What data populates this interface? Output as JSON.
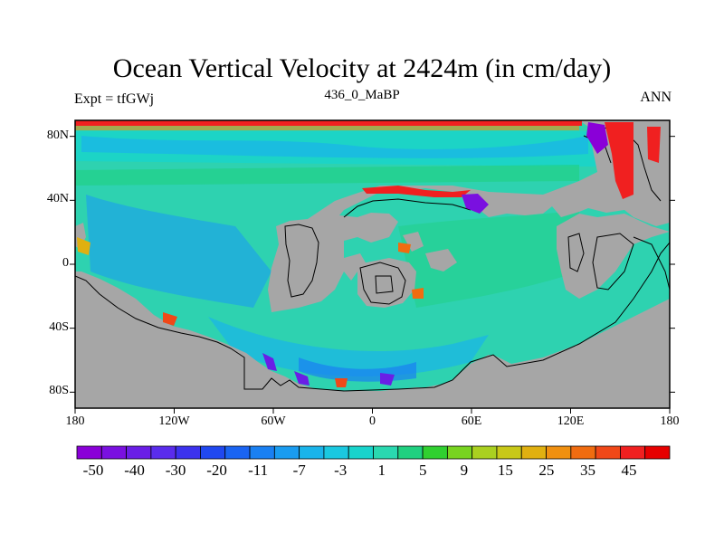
{
  "title": "Ocean Vertical Velocity at 2424m (in cm/day)",
  "subtitle_left": "Expt = tfGWj",
  "subtitle_center": "436_0_MaBP",
  "subtitle_right": "ANN",
  "map": {
    "lon_range": [
      -180,
      180
    ],
    "lat_range": [
      -90,
      90
    ],
    "land_color": "#a6a6a6",
    "ocean_base_color": "#2ed2b0",
    "y_ticks": [
      {
        "lat": 80,
        "label": "80N"
      },
      {
        "lat": 40,
        "label": "40N"
      },
      {
        "lat": 0,
        "label": "0"
      },
      {
        "lat": -40,
        "label": "40S"
      },
      {
        "lat": -80,
        "label": "80S"
      }
    ],
    "x_ticks": [
      {
        "lon": -180,
        "label": "180"
      },
      {
        "lon": -120,
        "label": "120W"
      },
      {
        "lon": -60,
        "label": "60W"
      },
      {
        "lon": 0,
        "label": "0"
      },
      {
        "lon": 60,
        "label": "60E"
      },
      {
        "lon": 120,
        "label": "120E"
      },
      {
        "lon": 180,
        "label": "180"
      }
    ]
  },
  "colorbar": {
    "colors": [
      "#8a00d8",
      "#7a10e0",
      "#6a1ee6",
      "#5a2cec",
      "#3c32ee",
      "#2048f0",
      "#1a64f2",
      "#1a80f2",
      "#1a9cf0",
      "#1ab4ea",
      "#1ac8e0",
      "#18d4cc",
      "#2ad8b0",
      "#20d080",
      "#30d030",
      "#78d420",
      "#aad020",
      "#c8c818",
      "#e0b010",
      "#f09010",
      "#f06c10",
      "#f04818",
      "#f02020",
      "#e60000"
    ],
    "labels": [
      "-50",
      "-40",
      "-30",
      "-20",
      "-11",
      "-7",
      "-3",
      "1",
      "5",
      "9",
      "15",
      "25",
      "35",
      "45"
    ]
  }
}
